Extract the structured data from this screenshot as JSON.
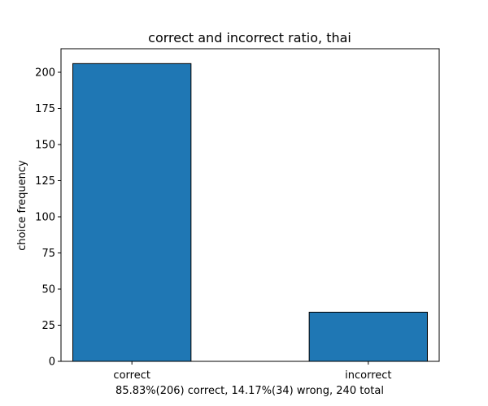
{
  "chart_data": {
    "type": "bar",
    "title": "correct and incorrect ratio, thai",
    "xlabel": "85.83%(206) correct, 14.17%(34) wrong, 240 total",
    "ylabel": "choice frequency",
    "categories": [
      "correct",
      "incorrect"
    ],
    "values": [
      206,
      34
    ],
    "ylim": [
      0,
      216.3
    ],
    "yticks": [
      0,
      25,
      50,
      75,
      100,
      125,
      150,
      175,
      200
    ],
    "grid": false,
    "colors": {
      "bar": "#1f77b4",
      "edge": "#000000"
    }
  }
}
